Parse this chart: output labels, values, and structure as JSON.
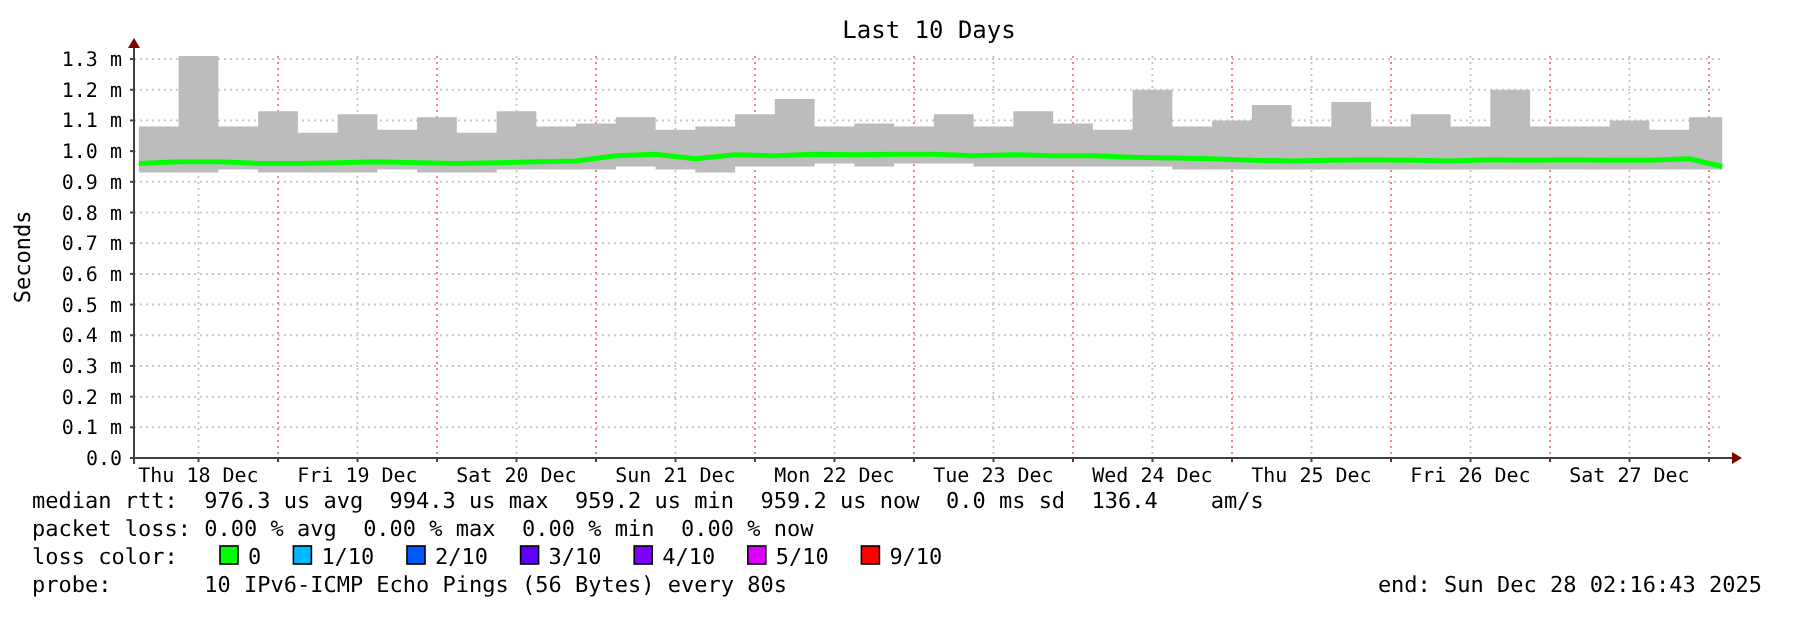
{
  "chart_data": {
    "type": "line",
    "title": "Last 10 Days",
    "ylabel": "Seconds",
    "x": [
      "2025-12-18T03:00",
      "2025-12-18T09:00",
      "2025-12-18T15:00",
      "2025-12-18T21:00",
      "2025-12-19T03:00",
      "2025-12-19T09:00",
      "2025-12-19T15:00",
      "2025-12-19T21:00",
      "2025-12-20T03:00",
      "2025-12-20T09:00",
      "2025-12-20T15:00",
      "2025-12-20T21:00",
      "2025-12-21T03:00",
      "2025-12-21T09:00",
      "2025-12-21T15:00",
      "2025-12-21T21:00",
      "2025-12-22T03:00",
      "2025-12-22T09:00",
      "2025-12-22T15:00",
      "2025-12-22T21:00",
      "2025-12-23T03:00",
      "2025-12-23T09:00",
      "2025-12-23T15:00",
      "2025-12-23T21:00",
      "2025-12-24T03:00",
      "2025-12-24T09:00",
      "2025-12-24T15:00",
      "2025-12-24T21:00",
      "2025-12-25T03:00",
      "2025-12-25T09:00",
      "2025-12-25T15:00",
      "2025-12-25T21:00",
      "2025-12-26T03:00",
      "2025-12-26T09:00",
      "2025-12-26T15:00",
      "2025-12-26T21:00",
      "2025-12-27T03:00",
      "2025-12-27T09:00",
      "2025-12-27T15:00",
      "2025-12-27T21:00",
      "2025-12-28T02:00"
    ],
    "series": [
      {
        "name": "0",
        "color": "#00ff00",
        "values": [
          0.96,
          0.965,
          0.965,
          0.96,
          0.96,
          0.962,
          0.965,
          0.962,
          0.96,
          0.962,
          0.965,
          0.968,
          0.985,
          0.99,
          0.975,
          0.988,
          0.985,
          0.99,
          0.988,
          0.99,
          0.99,
          0.985,
          0.988,
          0.985,
          0.985,
          0.98,
          0.978,
          0.975,
          0.97,
          0.968,
          0.97,
          0.972,
          0.97,
          0.968,
          0.972,
          0.97,
          0.972,
          0.97,
          0.97,
          0.975,
          0.95
        ],
        "lower": [
          0.93,
          0.93,
          0.94,
          0.93,
          0.93,
          0.93,
          0.94,
          0.93,
          0.93,
          0.94,
          0.94,
          0.94,
          0.95,
          0.94,
          0.93,
          0.95,
          0.95,
          0.96,
          0.95,
          0.96,
          0.96,
          0.95,
          0.95,
          0.95,
          0.95,
          0.95,
          0.94,
          0.94,
          0.94,
          0.94,
          0.94,
          0.94,
          0.94,
          0.94,
          0.94,
          0.94,
          0.94,
          0.94,
          0.94,
          0.94,
          0.93
        ],
        "upper": [
          1.08,
          1.31,
          1.08,
          1.13,
          1.06,
          1.12,
          1.07,
          1.11,
          1.06,
          1.13,
          1.08,
          1.09,
          1.11,
          1.07,
          1.08,
          1.12,
          1.17,
          1.08,
          1.09,
          1.08,
          1.12,
          1.08,
          1.13,
          1.09,
          1.07,
          1.2,
          1.08,
          1.1,
          1.15,
          1.08,
          1.16,
          1.08,
          1.12,
          1.08,
          1.2,
          1.08,
          1.08,
          1.1,
          1.07,
          1.11,
          1.06
        ]
      },
      {
        "name": "1/10",
        "color": "#00b8ff",
        "values": [
          null,
          null,
          null,
          null,
          null,
          null,
          null,
          null,
          null,
          null,
          null,
          null,
          null,
          null,
          null,
          null,
          null,
          null,
          null,
          null,
          null,
          null,
          null,
          null,
          null,
          null,
          null,
          null,
          null,
          null,
          null,
          null,
          null,
          null,
          null,
          null,
          null,
          null,
          null,
          null,
          null
        ]
      },
      {
        "name": "2/10",
        "color": "#0059ff",
        "values": [
          null,
          null,
          null,
          null,
          null,
          null,
          null,
          null,
          null,
          null,
          null,
          null,
          null,
          null,
          null,
          null,
          null,
          null,
          null,
          null,
          null,
          null,
          null,
          null,
          null,
          null,
          null,
          null,
          null,
          null,
          null,
          null,
          null,
          null,
          null,
          null,
          null,
          null,
          null,
          null,
          null
        ]
      },
      {
        "name": "3/10",
        "color": "#5e00ff",
        "values": [
          null,
          null,
          null,
          null,
          null,
          null,
          null,
          null,
          null,
          null,
          null,
          null,
          null,
          null,
          null,
          null,
          null,
          null,
          null,
          null,
          null,
          null,
          null,
          null,
          null,
          null,
          null,
          null,
          null,
          null,
          null,
          null,
          null,
          null,
          null,
          null,
          null,
          null,
          null,
          null,
          null
        ]
      },
      {
        "name": "4/10",
        "color": "#7e00ff",
        "values": [
          null,
          null,
          null,
          null,
          null,
          null,
          null,
          null,
          null,
          null,
          null,
          null,
          null,
          null,
          null,
          null,
          null,
          null,
          null,
          null,
          null,
          null,
          null,
          null,
          null,
          null,
          null,
          null,
          null,
          null,
          null,
          null,
          null,
          null,
          null,
          null,
          null,
          null,
          null,
          null,
          null
        ]
      },
      {
        "name": "5/10",
        "color": "#dd00ff",
        "values": [
          null,
          null,
          null,
          null,
          null,
          null,
          null,
          null,
          null,
          null,
          null,
          null,
          null,
          null,
          null,
          null,
          null,
          null,
          null,
          null,
          null,
          null,
          null,
          null,
          null,
          null,
          null,
          null,
          null,
          null,
          null,
          null,
          null,
          null,
          null,
          null,
          null,
          null,
          null,
          null,
          null
        ]
      },
      {
        "name": "9/10",
        "color": "#ff0000",
        "values": [
          null,
          null,
          null,
          null,
          null,
          null,
          null,
          null,
          null,
          null,
          null,
          null,
          null,
          null,
          null,
          null,
          null,
          null,
          null,
          null,
          null,
          null,
          null,
          null,
          null,
          null,
          null,
          null,
          null,
          null,
          null,
          null,
          null,
          null,
          null,
          null,
          null,
          null,
          null,
          null,
          null
        ]
      }
    ],
    "xlim": [
      "2025-12-18T02:16",
      "2025-12-28T02:16"
    ],
    "xticks": [
      {
        "value": "2025-12-18T12:00",
        "label": "Thu 18 Dec"
      },
      {
        "value": "2025-12-19T00:00",
        "label": null
      },
      {
        "value": "2025-12-19T12:00",
        "label": "Fri 19 Dec"
      },
      {
        "value": "2025-12-20T00:00",
        "label": null
      },
      {
        "value": "2025-12-20T12:00",
        "label": "Sat 20 Dec"
      },
      {
        "value": "2025-12-21T00:00",
        "label": null
      },
      {
        "value": "2025-12-21T12:00",
        "label": "Sun 21 Dec"
      },
      {
        "value": "2025-12-22T00:00",
        "label": null
      },
      {
        "value": "2025-12-22T12:00",
        "label": "Mon 22 Dec"
      },
      {
        "value": "2025-12-23T00:00",
        "label": null
      },
      {
        "value": "2025-12-23T12:00",
        "label": "Tue 23 Dec"
      },
      {
        "value": "2025-12-24T00:00",
        "label": null
      },
      {
        "value": "2025-12-24T12:00",
        "label": "Wed 24 Dec"
      },
      {
        "value": "2025-12-25T00:00",
        "label": null
      },
      {
        "value": "2025-12-25T12:00",
        "label": "Thu 25 Dec"
      },
      {
        "value": "2025-12-26T00:00",
        "label": null
      },
      {
        "value": "2025-12-26T12:00",
        "label": "Fri 26 Dec"
      },
      {
        "value": "2025-12-27T00:00",
        "label": null
      },
      {
        "value": "2025-12-27T12:00",
        "label": "Sat 27 Dec"
      },
      {
        "value": "2025-12-28T00:00",
        "label": null
      }
    ],
    "ylim": [
      0,
      1.31
    ],
    "yticks": [
      {
        "value": 0,
        "label": "0.0"
      },
      {
        "value": 0.1,
        "label": "0.1 m"
      },
      {
        "value": 0.2,
        "label": "0.2 m"
      },
      {
        "value": 0.3,
        "label": "0.3 m"
      },
      {
        "value": 0.4,
        "label": "0.4 m"
      },
      {
        "value": 0.5,
        "label": "0.5 m"
      },
      {
        "value": 0.6,
        "label": "0.6 m"
      },
      {
        "value": 0.7,
        "label": "0.7 m"
      },
      {
        "value": 0.8,
        "label": "0.8 m"
      },
      {
        "value": 0.9,
        "label": "0.9 m"
      },
      {
        "value": 1,
        "label": "1.0 m"
      },
      {
        "value": 1.1,
        "label": "1.1 m"
      },
      {
        "value": 1.2,
        "label": "1.2 m"
      },
      {
        "value": 1.3,
        "label": "1.3 m"
      }
    ],
    "grid": true,
    "legend": "bottom",
    "legend_title": "loss color:",
    "marker": "none",
    "line_style": "solid",
    "annotations": [
      "median rtt:  976.3 us avg  994.3 us max  959.2 us min  959.2 us now  0.0 ms sd  136.4    am/s",
      "packet loss: 0.00 % avg  0.00 % max  0.00 % min  0.00 % now",
      "probe:       10 IPv6-ICMP Echo Pings (56 Bytes) every 80s",
      "end: Sun Dec 28 02:16:43 2025"
    ]
  }
}
